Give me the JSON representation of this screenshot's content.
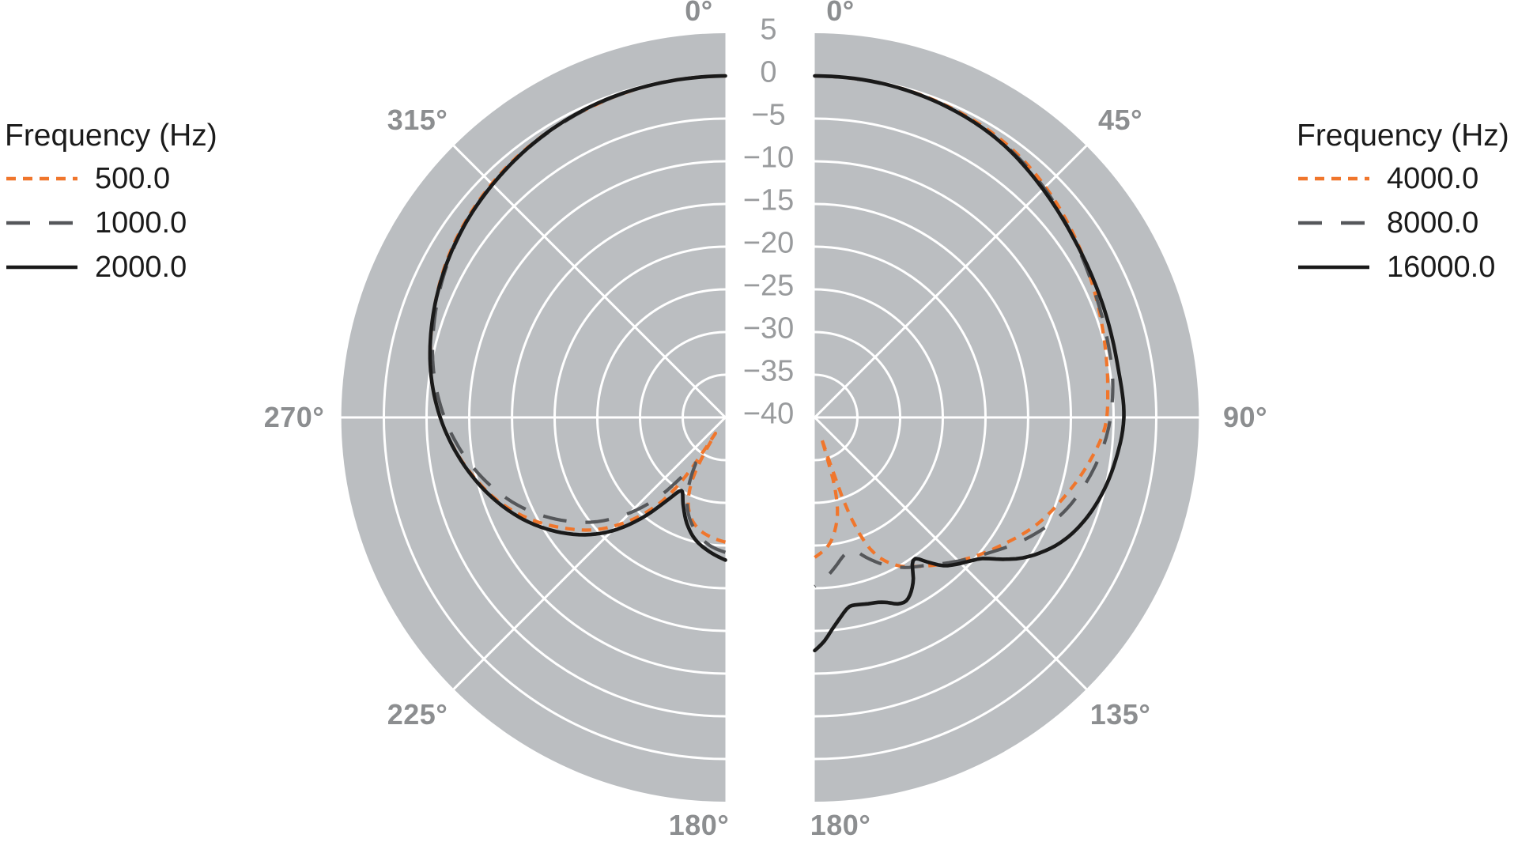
{
  "colors": {
    "background": "#ffffff",
    "disc_fill": "#bbbec1",
    "grid": "#ffffff",
    "axis_label": "#8c8e90",
    "legend_text": "#1b1b1b",
    "orange": "#f0762c",
    "gray_dash": "#55575a",
    "black": "#1a1a1a"
  },
  "chart_data": {
    "type": "polar-line",
    "description": "Two half-circle polar directivity plots; radial axis in dB from -40 (center) to 5 (edge), grid rings every 5 dB, spokes every 45 degrees",
    "radial_axis": {
      "range": [
        -40,
        5
      ],
      "tick_values": [
        5,
        0,
        -5,
        -10,
        -15,
        -20,
        -25,
        -30,
        -35,
        -40
      ],
      "tick_labels": [
        "5",
        "0",
        "−5",
        "−10",
        "−15",
        "−20",
        "−25",
        "−30",
        "−35",
        "−40"
      ]
    },
    "plots": [
      {
        "id": "left",
        "legend_title": "Frequency (Hz)",
        "angle_labels": [
          "0°",
          "315°",
          "270°",
          "225°",
          "180°"
        ],
        "series": [
          {
            "name": "500.0",
            "color": "#f0762c",
            "dash": "dash-short",
            "points": [
              [
                180,
                -25.4
              ],
              [
                187,
                -25.9
              ],
              [
                193,
                -26.5
              ],
              [
                199,
                -27.6
              ],
              [
                204,
                -29.3
              ],
              [
                208,
                -31.8
              ],
              [
                210.5,
                -35.0
              ],
              [
                212,
                -37.8
              ],
              [
                213.5,
                -33.0
              ],
              [
                216,
                -28.8
              ],
              [
                220,
                -25.4
              ],
              [
                225,
                -22.2
              ],
              [
                230,
                -19.5
              ],
              [
                236,
                -16.9
              ],
              [
                242,
                -14.4
              ],
              [
                249,
                -11.9
              ],
              [
                256,
                -9.9
              ],
              [
                264,
                -7.9
              ],
              [
                270,
                -6.6
              ],
              [
                278,
                -5.2
              ],
              [
                288,
                -3.9
              ],
              [
                300,
                -2.5
              ],
              [
                312,
                -1.5
              ],
              [
                324,
                -0.8
              ],
              [
                336,
                -0.4
              ],
              [
                348,
                -0.1
              ],
              [
                360,
                0
              ]
            ]
          },
          {
            "name": "1000.0",
            "color": "#55575a",
            "dash": "dash-long",
            "points": [
              [
                180,
                -24.2
              ],
              [
                187,
                -24.9
              ],
              [
                194,
                -26.1
              ],
              [
                201,
                -27.9
              ],
              [
                207,
                -30.3
              ],
              [
                211,
                -32.5
              ],
              [
                213.5,
                -33.6
              ],
              [
                216.5,
                -31.2
              ],
              [
                220,
                -27.8
              ],
              [
                225,
                -24.2
              ],
              [
                231,
                -20.6
              ],
              [
                238,
                -17.3
              ],
              [
                246,
                -14.0
              ],
              [
                254,
                -11.3
              ],
              [
                262,
                -9.0
              ],
              [
                270,
                -7.1
              ],
              [
                279,
                -5.4
              ],
              [
                289,
                -4.0
              ],
              [
                300,
                -2.7
              ],
              [
                312,
                -1.6
              ],
              [
                324,
                -0.9
              ],
              [
                336,
                -0.4
              ],
              [
                348,
                -0.1
              ],
              [
                360,
                0
              ]
            ]
          },
          {
            "name": "2000.0",
            "color": "#1a1a1a",
            "dash": "solid",
            "points": [
              [
                180,
                -23.3
              ],
              [
                187,
                -24.2
              ],
              [
                194,
                -25.3
              ],
              [
                200,
                -26.8
              ],
              [
                206,
                -28.7
              ],
              [
                211,
                -30.0
              ],
              [
                215,
                -28.2
              ],
              [
                219,
                -25.2
              ],
              [
                224,
                -21.8
              ],
              [
                229,
                -19.1
              ],
              [
                235,
                -16.5
              ],
              [
                242,
                -13.9
              ],
              [
                249,
                -11.7
              ],
              [
                256,
                -9.8
              ],
              [
                263,
                -8.1
              ],
              [
                270,
                -6.6
              ],
              [
                278,
                -5.2
              ],
              [
                287,
                -4.0
              ],
              [
                297,
                -2.9
              ],
              [
                307,
                -2.0
              ],
              [
                317,
                -1.3
              ],
              [
                327,
                -0.7
              ],
              [
                337,
                -0.3
              ],
              [
                348,
                -0.1
              ],
              [
                360,
                0
              ]
            ]
          }
        ]
      },
      {
        "id": "right",
        "legend_title": "Frequency (Hz)",
        "angle_labels": [
          "0°",
          "45°",
          "90°",
          "135°",
          "180°"
        ],
        "series": [
          {
            "name": "4000.0",
            "color": "#f0762c",
            "dash": "dash-short",
            "points": [
              [
                0,
                0
              ],
              [
                12,
                -0.1
              ],
              [
                24,
                -0.4
              ],
              [
                35,
                -0.9
              ],
              [
                45,
                -1.8
              ],
              [
                55,
                -2.9
              ],
              [
                65,
                -4.0
              ],
              [
                75,
                -4.9
              ],
              [
                84,
                -5.5
              ],
              [
                92,
                -6.0
              ],
              [
                100,
                -7.6
              ],
              [
                108,
                -9.4
              ],
              [
                116,
                -11.2
              ],
              [
                124,
                -13.4
              ],
              [
                131,
                -15.2
              ],
              [
                138,
                -17.0
              ],
              [
                145,
                -18.7
              ],
              [
                151,
                -20.2
              ],
              [
                156,
                -22.4
              ],
              [
                159,
                -25.5
              ],
              [
                161,
                -30.0
              ],
              [
                162,
                -37.5
              ],
              [
                163.5,
                -32.5
              ],
              [
                166,
                -29.0
              ],
              [
                170,
                -26.5
              ],
              [
                174,
                -24.9
              ],
              [
                180,
                -23.6
              ]
            ]
          },
          {
            "name": "8000.0",
            "color": "#55575a",
            "dash": "dash-long",
            "points": [
              [
                0,
                0
              ],
              [
                12,
                -0.15
              ],
              [
                24,
                -0.5
              ],
              [
                35,
                -1.1
              ],
              [
                45,
                -2.0
              ],
              [
                55,
                -3.1
              ],
              [
                65,
                -4.0
              ],
              [
                74,
                -4.5
              ],
              [
                84,
                -4.9
              ],
              [
                94,
                -5.8
              ],
              [
                104,
                -7.4
              ],
              [
                112,
                -9.1
              ],
              [
                120,
                -11.5
              ],
              [
                128,
                -14.2
              ],
              [
                136,
                -16.5
              ],
              [
                143,
                -18.3
              ],
              [
                149,
                -19.5
              ],
              [
                155,
                -21.0
              ],
              [
                160,
                -22.6
              ],
              [
                164,
                -23.9
              ],
              [
                168,
                -23.5
              ],
              [
                172,
                -22.4
              ],
              [
                176,
                -21.2
              ],
              [
                180,
                -20.2
              ]
            ]
          },
          {
            "name": "16000.0",
            "color": "#1a1a1a",
            "dash": "solid",
            "points": [
              [
                0,
                0
              ],
              [
                12,
                -0.1
              ],
              [
                24,
                -0.5
              ],
              [
                34,
                -1.1
              ],
              [
                45,
                -2.2
              ],
              [
                55,
                -3.1
              ],
              [
                64,
                -3.6
              ],
              [
                73,
                -3.9
              ],
              [
                81,
                -4.0
              ],
              [
                90,
                -3.8
              ],
              [
                98,
                -4.4
              ],
              [
                105,
                -5.2
              ],
              [
                111,
                -6.2
              ],
              [
                116,
                -7.4
              ],
              [
                120,
                -8.8
              ],
              [
                124,
                -10.6
              ],
              [
                127,
                -12.4
              ],
              [
                130,
                -14.3
              ],
              [
                133,
                -15.3
              ],
              [
                136,
                -16.1
              ],
              [
                139,
                -17.0
              ],
              [
                142,
                -18.5
              ],
              [
                144.5,
                -19.7
              ],
              [
                146.5,
                -19.3
              ],
              [
                148.5,
                -17.9
              ],
              [
                151,
                -16.7
              ],
              [
                153.5,
                -16.0
              ],
              [
                156,
                -16.1
              ],
              [
                158.5,
                -16.7
              ],
              [
                161,
                -17.1
              ],
              [
                164,
                -17.3
              ],
              [
                167,
                -17.5
              ],
              [
                169.5,
                -17.5
              ],
              [
                171.5,
                -16.9
              ],
              [
                173.5,
                -16.0
              ],
              [
                175.5,
                -15.0
              ],
              [
                177.5,
                -13.8
              ],
              [
                180,
                -12.7
              ]
            ]
          }
        ]
      }
    ],
    "grid": {
      "ring_step_db": 5,
      "spoke_step_deg": 45,
      "left_spokes_deg": [
        225,
        270,
        315
      ],
      "right_spokes_deg": [
        45,
        90,
        135
      ]
    }
  }
}
